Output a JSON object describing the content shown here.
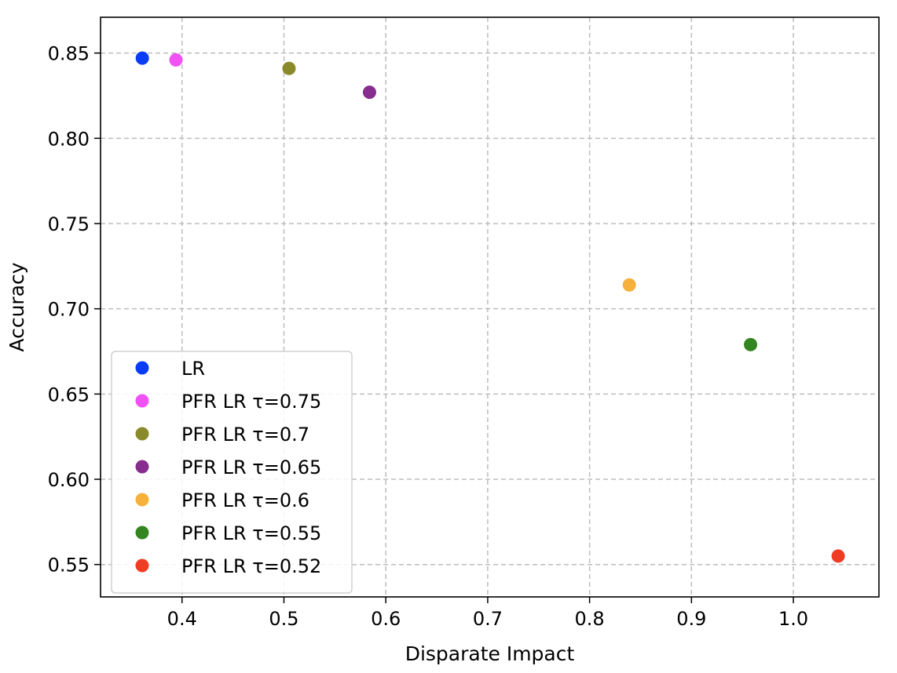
{
  "chart_data": {
    "type": "scatter",
    "title": "",
    "xlabel": "Disparate Impact",
    "ylabel": "Accuracy",
    "xlim": [
      0.32,
      1.084
    ],
    "ylim": [
      0.531,
      0.871
    ],
    "grid": true,
    "grid_style": "dashed",
    "legend_position": "lower-left",
    "x_ticks": [
      {
        "value": 0.4,
        "label": "0.4"
      },
      {
        "value": 0.5,
        "label": "0.5"
      },
      {
        "value": 0.6,
        "label": "0.6"
      },
      {
        "value": 0.7,
        "label": "0.7"
      },
      {
        "value": 0.8,
        "label": "0.8"
      },
      {
        "value": 0.9,
        "label": "0.9"
      },
      {
        "value": 1.0,
        "label": "1.0"
      }
    ],
    "y_ticks": [
      {
        "value": 0.55,
        "label": "0.55"
      },
      {
        "value": 0.6,
        "label": "0.60"
      },
      {
        "value": 0.65,
        "label": "0.65"
      },
      {
        "value": 0.7,
        "label": "0.70"
      },
      {
        "value": 0.75,
        "label": "0.75"
      },
      {
        "value": 0.8,
        "label": "0.80"
      },
      {
        "value": 0.85,
        "label": "0.85"
      }
    ],
    "series": [
      {
        "name": "LR",
        "color": "#0a3cf5",
        "points": [
          {
            "x": 0.361,
            "y": 0.847
          }
        ]
      },
      {
        "name": "PFR LR τ=0.75",
        "color": "#f052f5",
        "points": [
          {
            "x": 0.394,
            "y": 0.846
          }
        ]
      },
      {
        "name": "PFR LR τ=0.7",
        "color": "#8a8a2a",
        "points": [
          {
            "x": 0.505,
            "y": 0.841
          }
        ]
      },
      {
        "name": "PFR LR τ=0.65",
        "color": "#862d8d",
        "points": [
          {
            "x": 0.584,
            "y": 0.827
          }
        ]
      },
      {
        "name": "PFR LR τ=0.6",
        "color": "#f5b13c",
        "points": [
          {
            "x": 0.839,
            "y": 0.714
          }
        ]
      },
      {
        "name": "PFR LR τ=0.55",
        "color": "#348520",
        "points": [
          {
            "x": 0.958,
            "y": 0.679
          }
        ]
      },
      {
        "name": "PFR LR τ=0.52",
        "color": "#ef3c24",
        "points": [
          {
            "x": 1.044,
            "y": 0.555
          }
        ]
      }
    ]
  }
}
